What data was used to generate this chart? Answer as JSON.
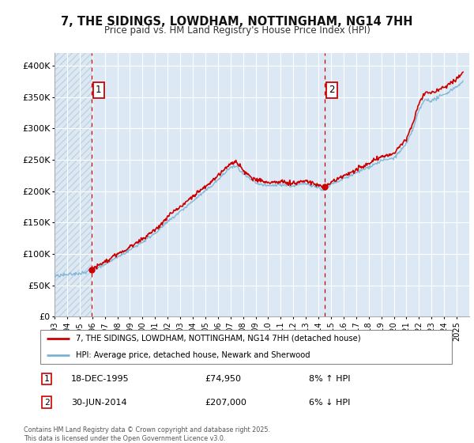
{
  "title_line1": "7, THE SIDINGS, LOWDHAM, NOTTINGHAM, NG14 7HH",
  "title_line2": "Price paid vs. HM Land Registry's House Price Index (HPI)",
  "background_color": "#ffffff",
  "plot_bg_color": "#dce9f5",
  "grid_color": "#ffffff",
  "line1_color": "#cc0000",
  "line2_color": "#7ab3d4",
  "annotation1_date": "18-DEC-1995",
  "annotation1_price": "£74,950",
  "annotation1_hpi": "8% ↑ HPI",
  "annotation2_date": "30-JUN-2014",
  "annotation2_price": "£207,000",
  "annotation2_hpi": "6% ↓ HPI",
  "legend_line1": "7, THE SIDINGS, LOWDHAM, NOTTINGHAM, NG14 7HH (detached house)",
  "legend_line2": "HPI: Average price, detached house, Newark and Sherwood",
  "footnote": "Contains HM Land Registry data © Crown copyright and database right 2025.\nThis data is licensed under the Open Government Licence v3.0.",
  "xmin": 1993,
  "xmax": 2026,
  "ymin": 0,
  "ymax": 420000,
  "yticks": [
    0,
    50000,
    100000,
    150000,
    200000,
    250000,
    300000,
    350000,
    400000
  ],
  "ytick_labels": [
    "£0",
    "£50K",
    "£100K",
    "£150K",
    "£200K",
    "£250K",
    "£300K",
    "£350K",
    "£400K"
  ],
  "xticks": [
    1993,
    1994,
    1995,
    1996,
    1997,
    1998,
    1999,
    2000,
    2001,
    2002,
    2003,
    2004,
    2005,
    2006,
    2007,
    2008,
    2009,
    2010,
    2011,
    2012,
    2013,
    2014,
    2015,
    2016,
    2017,
    2018,
    2019,
    2020,
    2021,
    2022,
    2023,
    2024,
    2025
  ],
  "sale1_x": 1995.96,
  "sale1_y": 74950,
  "sale2_x": 2014.5,
  "sale2_y": 207000,
  "vline1_x": 1995.96,
  "vline2_x": 2014.5,
  "hatch_cutoff": 1995.96
}
